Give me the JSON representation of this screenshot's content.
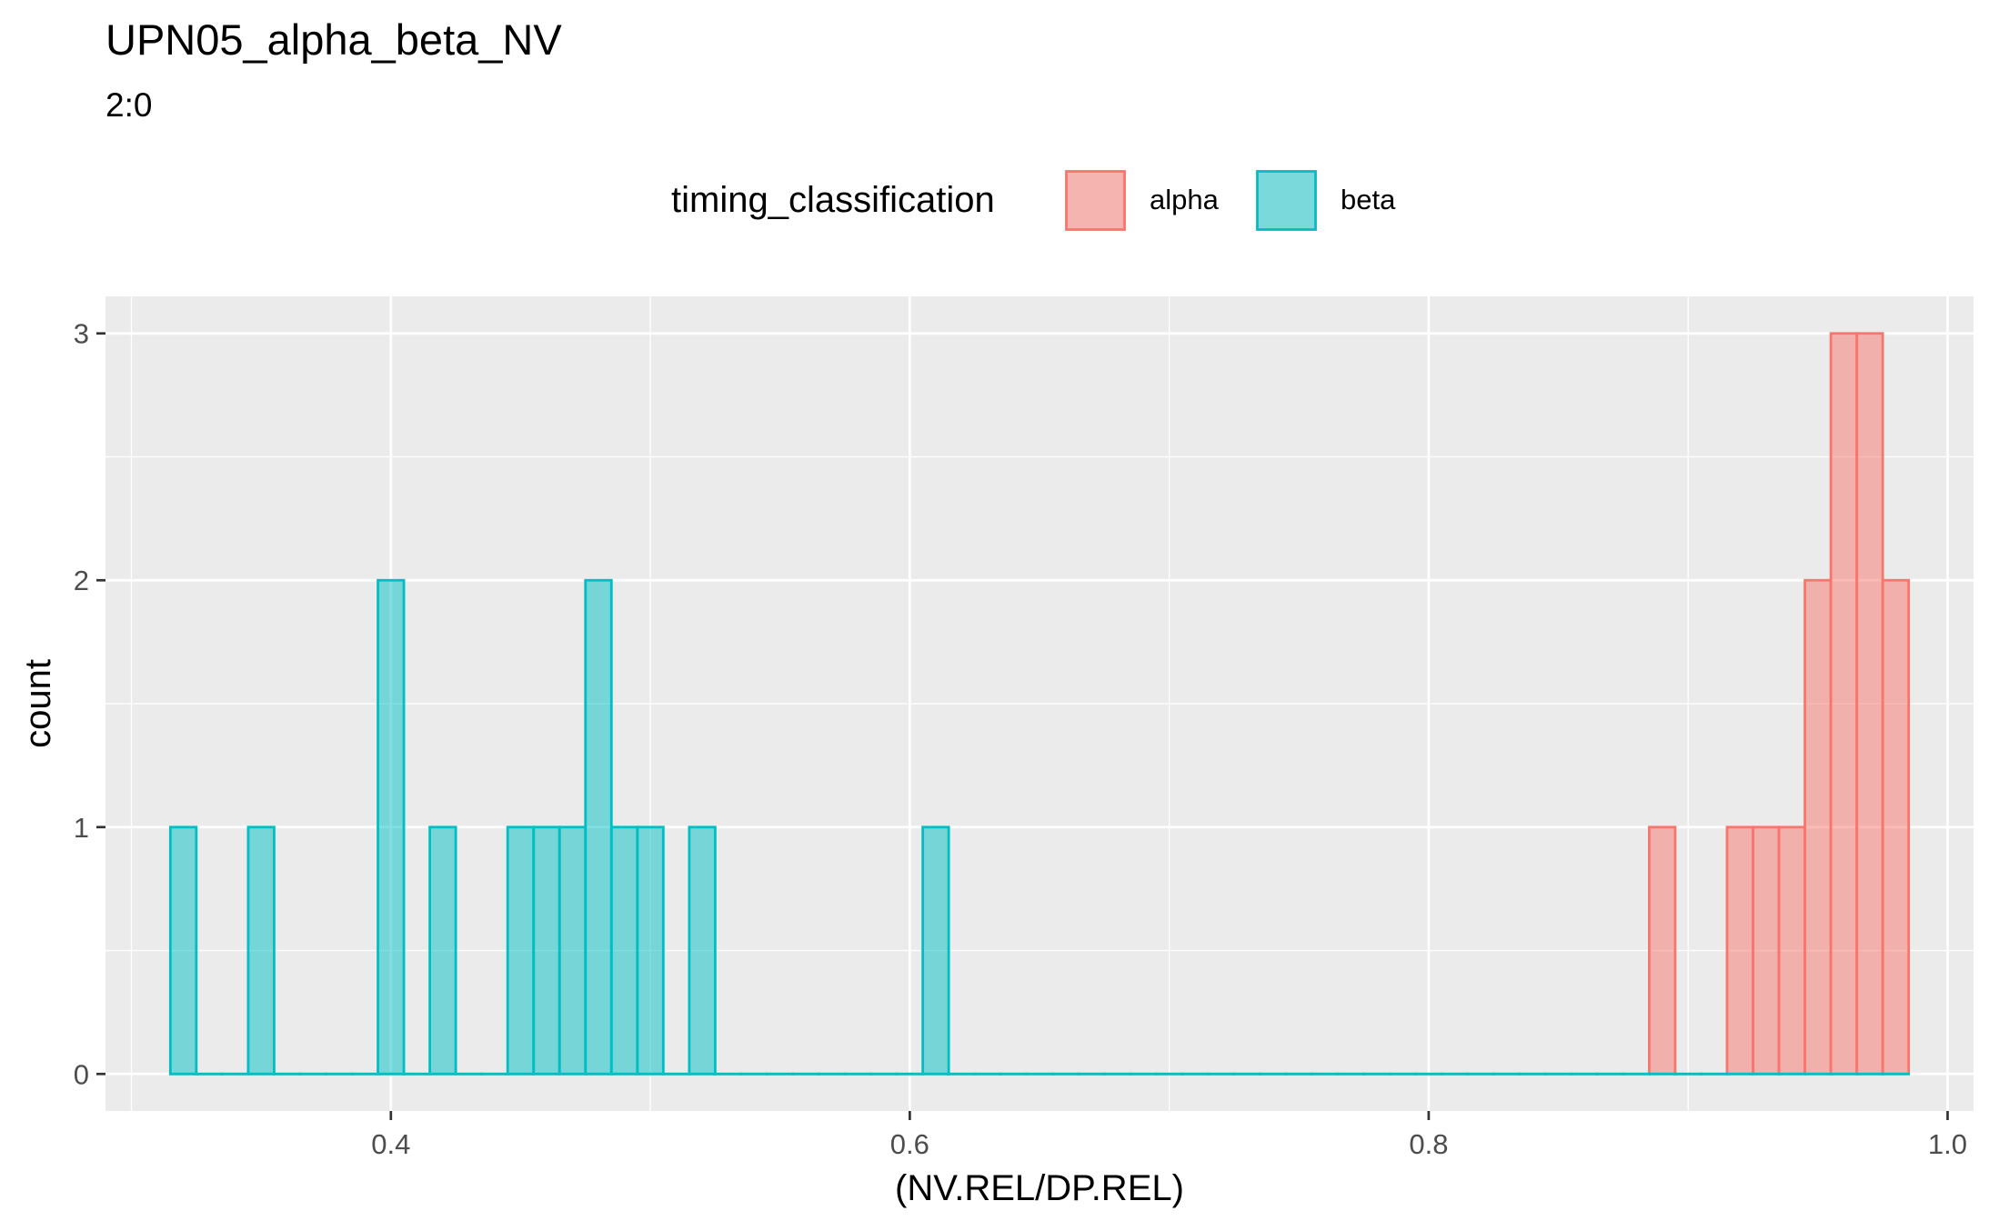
{
  "chart_data": {
    "type": "bar",
    "title": "UPN05_alpha_beta_NV",
    "subtitle": "2:0",
    "xlabel": "(NV.REL/DP.REL)",
    "ylabel": "count",
    "xlim": [
      0.29,
      1.01
    ],
    "ylim": [
      -0.15,
      3.15
    ],
    "x_ticks": [
      0.4,
      0.6,
      0.8,
      1.0
    ],
    "x_tick_labels": [
      "0.4",
      "0.6",
      "0.8",
      "1.0"
    ],
    "y_ticks": [
      0,
      1,
      2,
      3
    ],
    "y_tick_labels": [
      "0",
      "1",
      "2",
      "3"
    ],
    "grid": true,
    "legend": {
      "title": "timing_classification",
      "position": "top",
      "entries": [
        "alpha",
        "beta"
      ]
    },
    "bin_width": 0.01,
    "series": [
      {
        "name": "alpha",
        "fill": "#F8766D",
        "stroke": "#F8766D",
        "range": [
          0.3225,
          0.9825
        ],
        "bins": [
          {
            "x": 0.8925,
            "count": 1
          },
          {
            "x": 0.9225,
            "count": 1
          },
          {
            "x": 0.9325,
            "count": 1
          },
          {
            "x": 0.9425,
            "count": 1
          },
          {
            "x": 0.9525,
            "count": 2
          },
          {
            "x": 0.9625,
            "count": 3
          },
          {
            "x": 0.9725,
            "count": 3
          },
          {
            "x": 0.9825,
            "count": 2
          }
        ]
      },
      {
        "name": "beta",
        "fill": "#00BFC4",
        "stroke": "#00BFC4",
        "range": [
          0.3225,
          0.9825
        ],
        "bins": [
          {
            "x": 0.3225,
            "count": 1
          },
          {
            "x": 0.3525,
            "count": 1
          },
          {
            "x": 0.4025,
            "count": 2
          },
          {
            "x": 0.4225,
            "count": 1
          },
          {
            "x": 0.4525,
            "count": 1
          },
          {
            "x": 0.4625,
            "count": 1
          },
          {
            "x": 0.4725,
            "count": 1
          },
          {
            "x": 0.4825,
            "count": 2
          },
          {
            "x": 0.4925,
            "count": 1
          },
          {
            "x": 0.5025,
            "count": 1
          },
          {
            "x": 0.5225,
            "count": 1
          },
          {
            "x": 0.6125,
            "count": 1
          }
        ]
      }
    ]
  }
}
